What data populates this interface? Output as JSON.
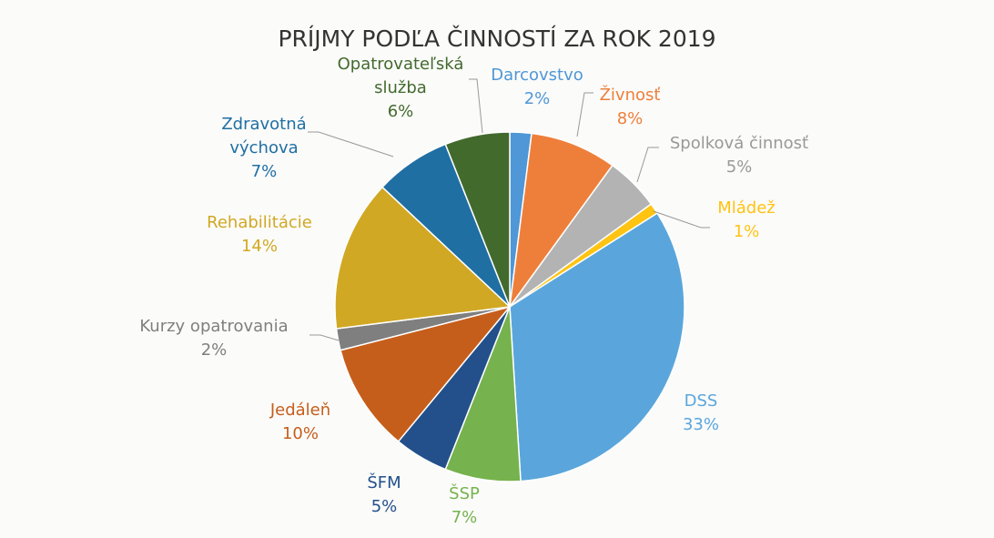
{
  "chart_data": {
    "type": "pie",
    "title": "PRÍJMY PODĽA ČINNOSTÍ ZA ROK 2019",
    "categories": [
      "Darcovstvo",
      "Živnosť",
      "Spolková činnosť",
      "Mládež",
      "DSS",
      "ŠSP",
      "ŠFM",
      "Jedáleň",
      "Kurzy opatrovania",
      "Rehabilitácie",
      "Zdravotná výchova",
      "Opatrovateľská služba"
    ],
    "values": [
      2,
      8,
      5,
      1,
      33,
      7,
      5,
      10,
      2,
      14,
      7,
      6
    ],
    "value_labels": [
      "2%",
      "8%",
      "5%",
      "1%",
      "33%",
      "7%",
      "5%",
      "10%",
      "2%",
      "14%",
      "7%",
      "6%"
    ],
    "colors": [
      "#4f97d6",
      "#ee7f3a",
      "#b3b3b3",
      "#ffc312",
      "#5aa6dc",
      "#76b24d",
      "#23508a",
      "#c65e1b",
      "#7f7f7f",
      "#d1a823",
      "#1f6fa3",
      "#436a2d"
    ]
  }
}
